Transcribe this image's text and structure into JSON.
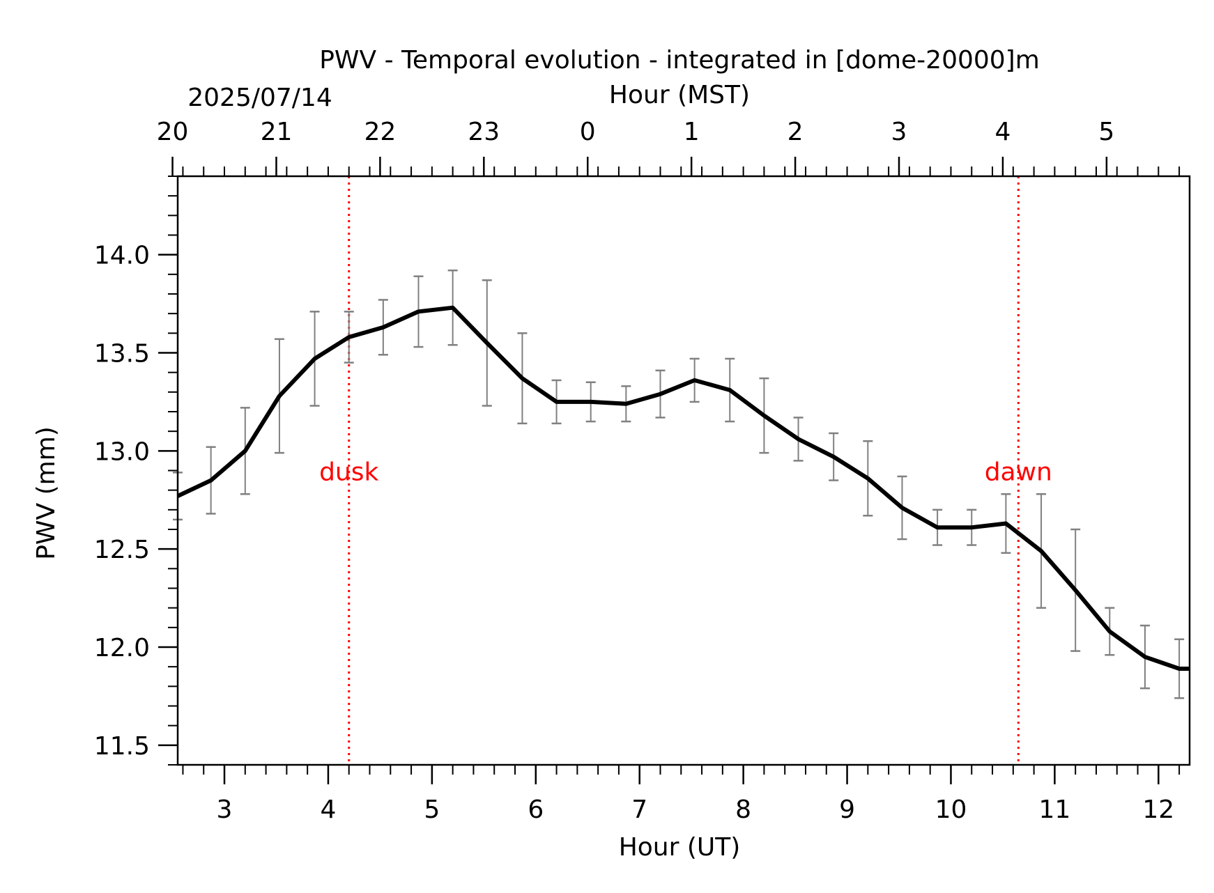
{
  "chart_data": {
    "type": "line",
    "title": "PWV - Temporal evolution - integrated in [dome-20000]m",
    "date_label": "2025/07/14",
    "xlabel": "Hour (UT)",
    "x2label": "Hour (MST)",
    "ylabel": "PWV (mm)",
    "xlim": [
      2.55,
      12.3
    ],
    "ylim": [
      11.4,
      14.4
    ],
    "x_ticks": [
      3,
      4,
      5,
      6,
      7,
      8,
      9,
      10,
      11,
      12
    ],
    "x_tick_labels": [
      "3",
      "4",
      "5",
      "6",
      "7",
      "8",
      "9",
      "10",
      "11",
      "12"
    ],
    "y_ticks": [
      11.5,
      12.0,
      12.5,
      13.0,
      13.5,
      14.0
    ],
    "y_tick_labels": [
      "11.5",
      "12.0",
      "12.5",
      "13.0",
      "13.5",
      "14.0"
    ],
    "top_ticks_ut": [
      2.5,
      3.5,
      4.5,
      5.5,
      6.5,
      7.5,
      8.5,
      9.5,
      10.5,
      11.5
    ],
    "top_tick_labels": [
      "20",
      "21",
      "22",
      "23",
      "0",
      "1",
      "2",
      "3",
      "4",
      "5"
    ],
    "annotations": [
      {
        "x": 4.2,
        "label": "dusk",
        "color": "#ff0000"
      },
      {
        "x": 10.65,
        "label": "dawn",
        "color": "#ff0000"
      }
    ],
    "series": [
      {
        "name": "PWV",
        "color": "#000000",
        "errorbar_color": "#808080",
        "x": [
          2.55,
          2.87,
          3.2,
          3.53,
          3.87,
          4.2,
          4.53,
          4.87,
          5.2,
          5.53,
          5.87,
          6.2,
          6.53,
          6.87,
          7.2,
          7.53,
          7.87,
          8.2,
          8.53,
          8.87,
          9.2,
          9.53,
          9.87,
          10.2,
          10.53,
          10.87,
          11.2,
          11.53,
          11.87,
          12.2,
          12.3
        ],
        "y": [
          12.77,
          12.85,
          13.0,
          13.28,
          13.47,
          13.58,
          13.63,
          13.71,
          13.73,
          13.55,
          13.37,
          13.25,
          13.25,
          13.24,
          13.29,
          13.36,
          13.31,
          13.18,
          13.06,
          12.97,
          12.86,
          12.71,
          12.61,
          12.61,
          12.63,
          12.49,
          12.29,
          12.08,
          11.95,
          11.89,
          11.89
        ],
        "yerr": [
          0.12,
          0.17,
          0.22,
          0.29,
          0.24,
          0.13,
          0.14,
          0.18,
          0.19,
          0.32,
          0.23,
          0.11,
          0.1,
          0.09,
          0.12,
          0.11,
          0.16,
          0.19,
          0.11,
          0.12,
          0.19,
          0.16,
          0.09,
          0.09,
          0.15,
          0.29,
          0.31,
          0.12,
          0.16,
          0.15,
          null
        ]
      }
    ]
  }
}
